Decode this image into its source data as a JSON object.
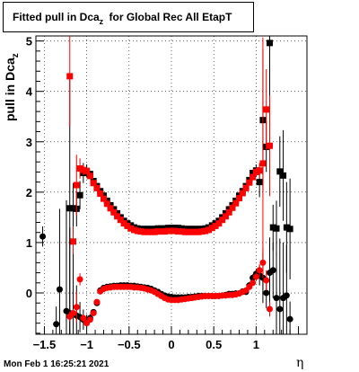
{
  "title": {
    "main": "Fitted pull in Dca",
    "sub": "z",
    "rest": " for Global Rec All EtapT"
  },
  "footer": "Mon Feb  1 16:25:21 2021",
  "xlabel": "η",
  "ylabel": {
    "main": "pull in Dca",
    "sub": "z"
  },
  "chart_data": {
    "type": "scatter",
    "title": "Fitted pull in Dca_z for Global Rec All EtapT",
    "xlabel": "η",
    "ylabel": "pull in Dca_z",
    "xlim": [
      -1.6,
      1.6
    ],
    "ylim": [
      -0.82,
      5.1
    ],
    "grid": true,
    "x_ticks": [
      -1.5,
      -1,
      -0.5,
      0,
      0.5,
      1
    ],
    "x_tick_labels": [
      "−1.5",
      "−1",
      "−0.5",
      "0",
      "0.5",
      "1"
    ],
    "y_ticks": [
      0,
      1,
      2,
      3,
      4,
      5
    ],
    "colors": {
      "black": "#000000",
      "red": "#ff0000"
    },
    "series": [
      {
        "color": "#000000",
        "marker": "square",
        "x": [
          -1.2,
          -1.16,
          -1.12,
          -1.08,
          -1.04,
          -1.0,
          -0.96,
          -0.92,
          -0.88,
          -0.84,
          -0.8,
          -0.76,
          -0.72,
          -0.68,
          -0.64,
          -0.6,
          -0.56,
          -0.52,
          -0.48,
          -0.44,
          -0.4,
          -0.36,
          -0.32,
          -0.28,
          -0.24,
          -0.2,
          -0.16,
          -0.12,
          -0.08,
          -0.04,
          0.0,
          0.04,
          0.08,
          0.12,
          0.16,
          0.2,
          0.24,
          0.28,
          0.32,
          0.36,
          0.4,
          0.44,
          0.48,
          0.52,
          0.56,
          0.6,
          0.64,
          0.68,
          0.72,
          0.76,
          0.8,
          0.84,
          0.88,
          0.92,
          0.96,
          1.0,
          1.04,
          1.08,
          1.12,
          1.16,
          1.2,
          1.24,
          1.28,
          1.32,
          1.36,
          1.4
        ],
        "y": [
          1.68,
          1.68,
          1.67,
          1.94,
          2.38,
          2.42,
          2.36,
          2.22,
          2.12,
          2.02,
          1.93,
          1.83,
          1.74,
          1.66,
          1.58,
          1.5,
          1.43,
          1.38,
          1.34,
          1.3,
          1.28,
          1.27,
          1.27,
          1.27,
          1.27,
          1.27,
          1.28,
          1.28,
          1.28,
          1.29,
          1.29,
          1.29,
          1.29,
          1.28,
          1.27,
          1.27,
          1.27,
          1.27,
          1.27,
          1.27,
          1.28,
          1.3,
          1.34,
          1.38,
          1.43,
          1.5,
          1.58,
          1.66,
          1.74,
          1.83,
          1.93,
          2.02,
          2.12,
          2.24,
          2.38,
          2.43,
          2.2,
          3.43,
          2.9,
          4.96,
          1.3,
          1.28,
          2.41,
          2.33,
          1.3,
          1.27
        ],
        "err": [
          2.6,
          0.5,
          0.35,
          0.28,
          0.2,
          0.13,
          0.06,
          0.04,
          0.03,
          0.02,
          0.02,
          0.02,
          0.02,
          0.02,
          0.02,
          0.02,
          0.02,
          0.02,
          0.02,
          0.02,
          0.02,
          0.02,
          0.02,
          0.02,
          0.02,
          0.02,
          0.02,
          0.02,
          0.02,
          0.02,
          0.02,
          0.02,
          0.02,
          0.02,
          0.02,
          0.02,
          0.02,
          0.02,
          0.02,
          0.02,
          0.02,
          0.02,
          0.02,
          0.02,
          0.02,
          0.02,
          0.02,
          0.02,
          0.02,
          0.02,
          0.02,
          0.02,
          0.03,
          0.04,
          0.06,
          0.12,
          0.3,
          1.4,
          0.5,
          2.0,
          0.45,
          0.55,
          0.7,
          0.9,
          0.9,
          1.0
        ]
      },
      {
        "color": "#ff0000",
        "marker": "square",
        "x": [
          -1.2,
          -1.16,
          -1.12,
          -1.08,
          -1.04,
          -1.0,
          -0.96,
          -0.92,
          -0.88,
          -0.84,
          -0.8,
          -0.76,
          -0.72,
          -0.68,
          -0.64,
          -0.6,
          -0.56,
          -0.52,
          -0.48,
          -0.44,
          -0.4,
          -0.36,
          -0.32,
          -0.28,
          -0.24,
          -0.2,
          -0.16,
          -0.12,
          -0.08,
          -0.04,
          0.0,
          0.04,
          0.08,
          0.12,
          0.16,
          0.2,
          0.24,
          0.28,
          0.32,
          0.36,
          0.4,
          0.44,
          0.48,
          0.52,
          0.56,
          0.6,
          0.64,
          0.68,
          0.72,
          0.76,
          0.8,
          0.84,
          0.88,
          0.92,
          0.96,
          1.0,
          1.04,
          1.08,
          1.12,
          1.16
        ],
        "y": [
          4.3,
          1.02,
          2.14,
          2.47,
          2.44,
          2.42,
          2.32,
          2.18,
          2.08,
          1.97,
          1.87,
          1.77,
          1.68,
          1.6,
          1.52,
          1.45,
          1.38,
          1.33,
          1.28,
          1.25,
          1.23,
          1.22,
          1.21,
          1.21,
          1.21,
          1.21,
          1.22,
          1.22,
          1.22,
          1.23,
          1.23,
          1.23,
          1.22,
          1.22,
          1.21,
          1.21,
          1.21,
          1.21,
          1.21,
          1.22,
          1.23,
          1.25,
          1.29,
          1.33,
          1.38,
          1.45,
          1.52,
          1.6,
          1.69,
          1.78,
          1.88,
          1.98,
          2.08,
          2.19,
          2.3,
          2.4,
          2.43,
          2.57,
          3.64,
          2.92
        ],
        "err": [
          1.0,
          0.3,
          0.6,
          0.2,
          0.1,
          0.06,
          0.04,
          0.03,
          0.02,
          0.02,
          0.02,
          0.02,
          0.02,
          0.02,
          0.02,
          0.02,
          0.02,
          0.02,
          0.02,
          0.02,
          0.02,
          0.02,
          0.02,
          0.02,
          0.02,
          0.02,
          0.02,
          0.02,
          0.02,
          0.02,
          0.02,
          0.02,
          0.02,
          0.02,
          0.02,
          0.02,
          0.02,
          0.02,
          0.02,
          0.02,
          0.02,
          0.02,
          0.02,
          0.02,
          0.02,
          0.02,
          0.02,
          0.02,
          0.02,
          0.02,
          0.02,
          0.02,
          0.02,
          0.03,
          0.05,
          0.08,
          0.15,
          2.5,
          0.8,
          1.0
        ]
      },
      {
        "color": "#000000",
        "marker": "circle",
        "x": [
          -1.52,
          -1.36,
          -1.32,
          -1.24,
          -1.2,
          -1.16,
          -1.12,
          -1.08,
          -1.04,
          -1.0,
          -0.96,
          -0.92,
          -0.88,
          -0.84,
          -0.8,
          -0.76,
          -0.72,
          -0.68,
          -0.64,
          -0.6,
          -0.56,
          -0.52,
          -0.48,
          -0.44,
          -0.4,
          -0.36,
          -0.32,
          -0.28,
          -0.24,
          -0.2,
          -0.16,
          -0.12,
          -0.08,
          -0.04,
          0.0,
          0.04,
          0.08,
          0.12,
          0.16,
          0.2,
          0.24,
          0.28,
          0.32,
          0.36,
          0.4,
          0.44,
          0.48,
          0.52,
          0.56,
          0.6,
          0.64,
          0.68,
          0.72,
          0.76,
          0.8,
          0.84,
          0.88,
          0.92,
          0.96,
          1.0,
          1.04,
          1.08,
          1.12,
          1.16,
          1.2,
          1.24,
          1.28,
          1.32,
          1.36,
          1.4
        ],
        "y": [
          1.12,
          -0.62,
          0.07,
          -0.36,
          -0.4,
          -0.43,
          -0.45,
          -0.48,
          -0.53,
          -0.55,
          -0.5,
          -0.38,
          -0.2,
          0.05,
          0.1,
          0.12,
          0.13,
          0.14,
          0.14,
          0.15,
          0.15,
          0.15,
          0.14,
          0.14,
          0.13,
          0.12,
          0.11,
          0.1,
          0.08,
          0.05,
          0.02,
          -0.02,
          -0.05,
          -0.07,
          -0.08,
          -0.09,
          -0.09,
          -0.09,
          -0.09,
          -0.08,
          -0.08,
          -0.07,
          -0.06,
          -0.06,
          -0.06,
          -0.06,
          -0.06,
          -0.06,
          -0.06,
          -0.05,
          -0.04,
          -0.02,
          -0.02,
          -0.01,
          -0.01,
          0.03,
          0.02,
          0.15,
          0.3,
          0.38,
          0.35,
          0.3,
          0.0,
          0.4,
          0.45,
          -0.1,
          -0.32,
          -0.1,
          -0.05,
          -0.52
        ],
        "err": [
          0.2,
          0.35,
          1.6,
          2.2,
          1.7,
          1.2,
          0.6,
          0.3,
          0.2,
          0.12,
          0.08,
          0.05,
          0.03,
          0.02,
          0.02,
          0.02,
          0.02,
          0.02,
          0.02,
          0.02,
          0.02,
          0.02,
          0.02,
          0.02,
          0.02,
          0.02,
          0.02,
          0.02,
          0.02,
          0.02,
          0.02,
          0.02,
          0.02,
          0.02,
          0.02,
          0.02,
          0.02,
          0.02,
          0.02,
          0.02,
          0.02,
          0.02,
          0.02,
          0.02,
          0.02,
          0.02,
          0.02,
          0.02,
          0.02,
          0.02,
          0.02,
          0.02,
          0.02,
          0.02,
          0.02,
          0.02,
          0.03,
          0.05,
          0.07,
          0.1,
          0.2,
          0.5,
          0.3,
          0.7,
          0.55,
          0.9,
          1.4,
          1.1,
          1.0,
          0.35
        ]
      },
      {
        "color": "#ff0000",
        "marker": "circle",
        "x": [
          -1.2,
          -1.16,
          -1.12,
          -1.08,
          -1.04,
          -1.0,
          -0.96,
          -0.92,
          -0.88,
          -0.84,
          -0.8,
          -0.76,
          -0.72,
          -0.68,
          -0.64,
          -0.6,
          -0.56,
          -0.52,
          -0.48,
          -0.44,
          -0.4,
          -0.36,
          -0.32,
          -0.28,
          -0.24,
          -0.2,
          -0.16,
          -0.12,
          -0.08,
          -0.04,
          0.0,
          0.04,
          0.08,
          0.12,
          0.16,
          0.2,
          0.24,
          0.28,
          0.32,
          0.36,
          0.4,
          0.44,
          0.48,
          0.52,
          0.56,
          0.6,
          0.64,
          0.68,
          0.72,
          0.76,
          0.8,
          0.84,
          0.88,
          0.92,
          0.96,
          1.0,
          1.04,
          1.08,
          1.12,
          1.16
        ],
        "y": [
          -0.47,
          -0.4,
          -0.28,
          0.27,
          -0.5,
          -0.6,
          -0.53,
          -0.4,
          -0.18,
          0.03,
          0.08,
          0.1,
          0.11,
          0.12,
          0.12,
          0.12,
          0.12,
          0.12,
          0.12,
          0.11,
          0.11,
          0.1,
          0.09,
          0.07,
          0.05,
          0.02,
          -0.02,
          -0.06,
          -0.1,
          -0.13,
          -0.14,
          -0.14,
          -0.14,
          -0.13,
          -0.12,
          -0.11,
          -0.1,
          -0.09,
          -0.08,
          -0.07,
          -0.06,
          -0.06,
          -0.06,
          -0.06,
          -0.06,
          -0.05,
          -0.05,
          -0.04,
          -0.04,
          -0.03,
          -0.01,
          0.02,
          0.05,
          0.12,
          0.2,
          0.32,
          0.45,
          0.6,
          0.25,
          -0.32
        ],
        "err": [
          0.1,
          0.08,
          0.3,
          0.12,
          0.08,
          0.06,
          0.05,
          0.04,
          0.03,
          0.02,
          0.02,
          0.02,
          0.02,
          0.02,
          0.02,
          0.02,
          0.02,
          0.02,
          0.02,
          0.02,
          0.02,
          0.02,
          0.02,
          0.02,
          0.02,
          0.02,
          0.02,
          0.02,
          0.02,
          0.02,
          0.02,
          0.02,
          0.02,
          0.02,
          0.02,
          0.02,
          0.02,
          0.02,
          0.02,
          0.02,
          0.02,
          0.02,
          0.02,
          0.02,
          0.02,
          0.02,
          0.02,
          0.02,
          0.02,
          0.02,
          0.02,
          0.02,
          0.03,
          0.04,
          0.06,
          0.08,
          0.12,
          0.3,
          0.2,
          0.15
        ]
      }
    ]
  }
}
